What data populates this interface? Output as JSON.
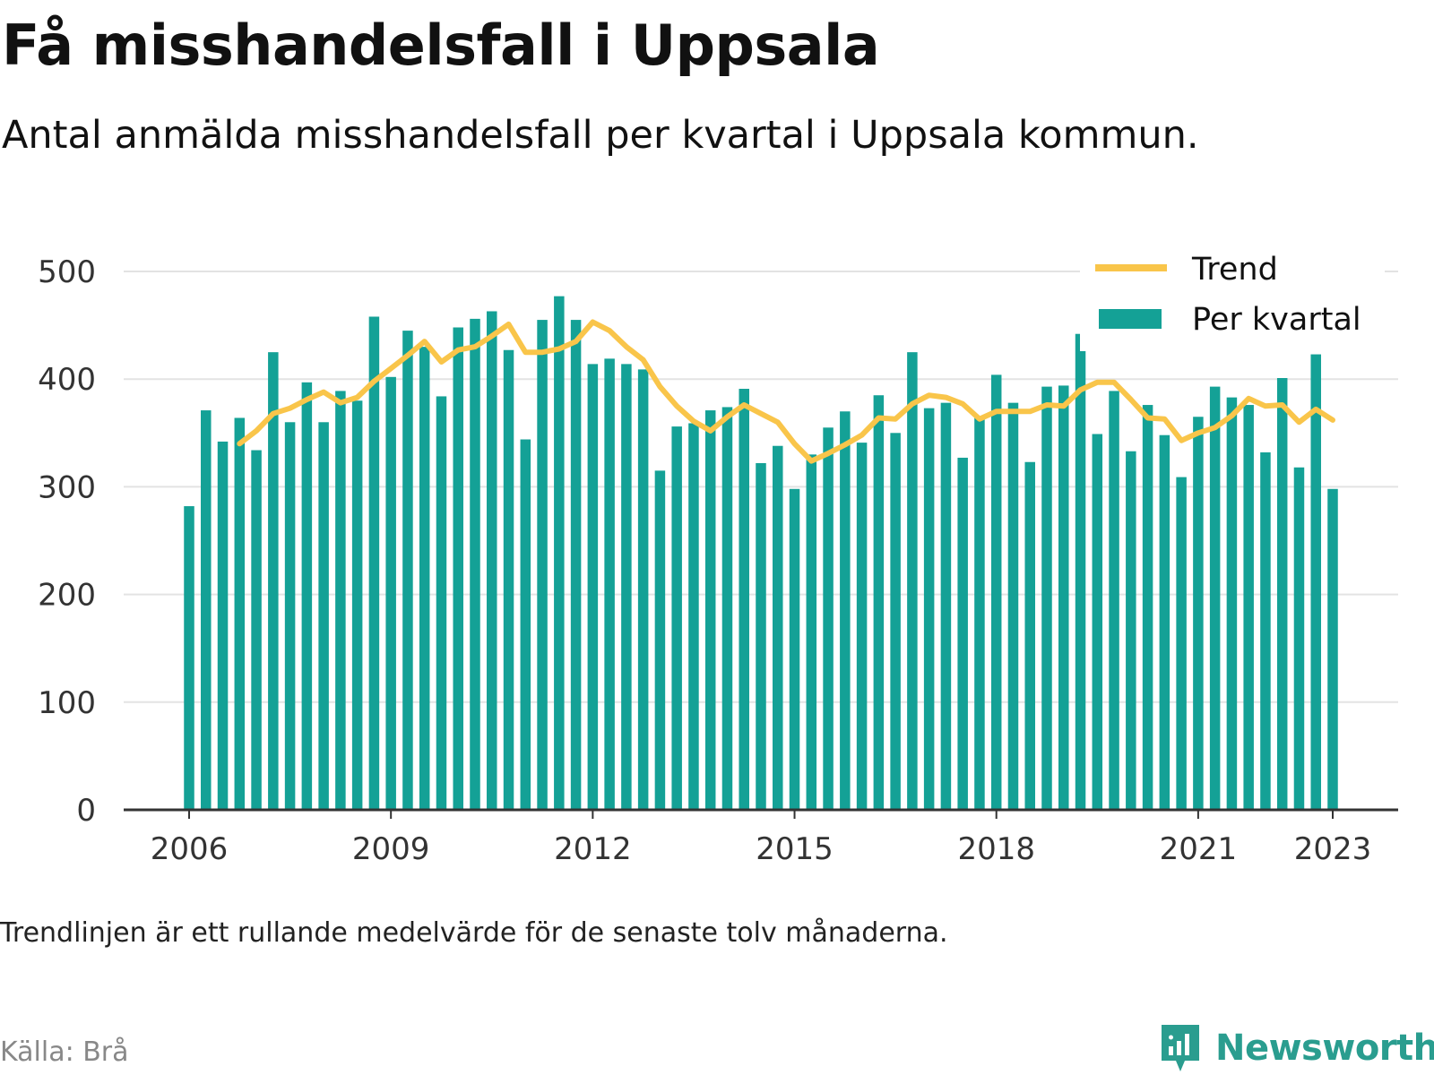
{
  "title": "Få misshandelsfall i Uppsala",
  "subtitle": "Antal anmälda misshandelsfall per kvartal i Uppsala kommun.",
  "note": "Trendlinjen är ett rullande medelvärde för de senaste tolv månaderna.",
  "source": "Källa: Brå",
  "brand": {
    "name": "Newsworthy",
    "logo_icon": "bar-chart-speech-bubble-icon"
  },
  "colors": {
    "bars": "#14a196",
    "trend": "#f9c54a",
    "grid": "#e3e3e3",
    "axis": "#333333",
    "brand": "#2a9d8f"
  },
  "chart_data": {
    "type": "bar",
    "ylim": [
      0,
      500
    ],
    "yticks": [
      0,
      100,
      200,
      300,
      400,
      500
    ],
    "xticks": [
      "2006",
      "2009",
      "2012",
      "2015",
      "2018",
      "2021",
      "2023"
    ],
    "grid": true,
    "legend_position": "top-right",
    "x_start": "2006 Q1",
    "interval": "quarter",
    "series": [
      {
        "name": "Trend",
        "kind": "line",
        "values": [
          null,
          null,
          null,
          340,
          352,
          368,
          373,
          381,
          388,
          378,
          383,
          398,
          410,
          422,
          435,
          416,
          427,
          430,
          440,
          451,
          425,
          425,
          428,
          435,
          453,
          445,
          430,
          418,
          393,
          375,
          361,
          352,
          365,
          376,
          368,
          360,
          340,
          324,
          331,
          339,
          348,
          364,
          363,
          377,
          385,
          383,
          377,
          363,
          370,
          370,
          370,
          376,
          375,
          390,
          397,
          397,
          381,
          364,
          363,
          343,
          350,
          355,
          366,
          382,
          375,
          376,
          360,
          372,
          362
        ]
      },
      {
        "name": "Per kvartal",
        "kind": "bar",
        "values": [
          282,
          371,
          342,
          364,
          334,
          425,
          360,
          397,
          360,
          389,
          380,
          458,
          402,
          445,
          430,
          384,
          448,
          456,
          463,
          427,
          344,
          455,
          477,
          455,
          414,
          419,
          414,
          409,
          315,
          356,
          359,
          371,
          374,
          391,
          322,
          338,
          298,
          330,
          355,
          370,
          341,
          385,
          350,
          425,
          373,
          378,
          327,
          364,
          404,
          378,
          323,
          393,
          394,
          442,
          349,
          389,
          333,
          376,
          348,
          309,
          365,
          393,
          383,
          376,
          332,
          401,
          318,
          423,
          298
        ]
      }
    ]
  }
}
